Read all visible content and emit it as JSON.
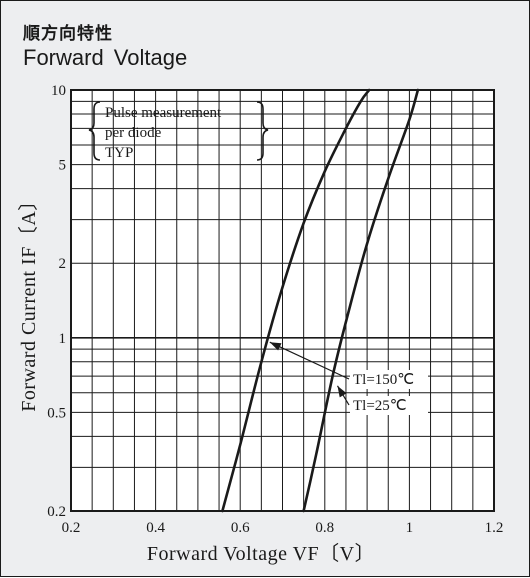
{
  "header": {
    "title_jp": "順方向特性",
    "title_en": "Forward  Voltage"
  },
  "note_lines": [
    "Pulse measurement",
    "per diode",
    "TYP"
  ],
  "colors": {
    "background": "#edeef0",
    "plot_bg": "#ffffff",
    "ink": "#1a1a1a"
  },
  "chart_data": {
    "type": "line",
    "title": "Forward  Voltage",
    "xlabel": "Forward Voltage VF〔V〕",
    "ylabel": "Forward Current IF〔A〕",
    "xlim": [
      0.2,
      1.2
    ],
    "ylim": [
      0.2,
      10
    ],
    "yscale": "log",
    "grid": true,
    "x_ticks": [
      0.2,
      0.4,
      0.6,
      0.8,
      1.0,
      1.2
    ],
    "x_tick_labels": [
      "0.2",
      "0.4",
      "0.6",
      "0.8",
      "1",
      "1.2"
    ],
    "y_ticks": [
      0.2,
      0.5,
      1,
      2,
      5,
      10
    ],
    "y_tick_labels": [
      "0.2",
      "0.5",
      "1",
      "2",
      "5",
      "10"
    ],
    "series": [
      {
        "name": "Tl=150℃",
        "x": [
          0.558,
          0.6,
          0.65,
          0.7,
          0.75,
          0.8,
          0.85,
          0.885,
          0.905
        ],
        "y": [
          0.2,
          0.37,
          0.8,
          1.6,
          2.9,
          4.7,
          7.0,
          9.0,
          10
        ]
      },
      {
        "name": "Tl=25℃",
        "x": [
          0.75,
          0.78,
          0.82,
          0.86,
          0.9,
          0.95,
          1.0,
          1.02
        ],
        "y": [
          0.2,
          0.34,
          0.72,
          1.35,
          2.4,
          4.4,
          7.6,
          10
        ]
      }
    ],
    "annotations": [
      {
        "text": "Tl=150℃",
        "series": 0,
        "x": 0.67,
        "y": 0.96
      },
      {
        "text": "Tl=25℃",
        "series": 1,
        "x": 0.83,
        "y": 0.64
      }
    ]
  }
}
